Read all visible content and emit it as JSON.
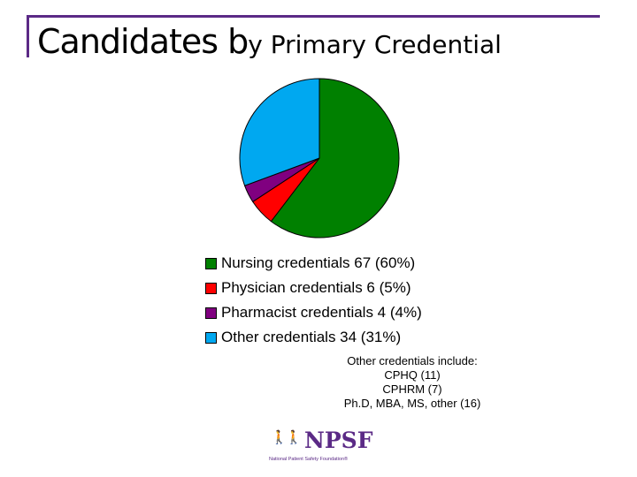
{
  "title": {
    "part1": "Candidates b",
    "part2": "y Primary Credential"
  },
  "colors": {
    "frame": "#5b2a86",
    "nursing": "#008000",
    "physician": "#ff0000",
    "pharmacist": "#800080",
    "other": "#00a8f0"
  },
  "chart_data": {
    "type": "pie",
    "title": "Candidates by Primary Credential",
    "slices": [
      {
        "label": "Nursing credentials  67 (60%)",
        "value": 67,
        "color": "#008000"
      },
      {
        "label": "Physician credentials  6  (5%)",
        "value": 6,
        "color": "#ff0000"
      },
      {
        "label": "Pharmacist credentials  4 (4%)",
        "value": 4,
        "color": "#800080"
      },
      {
        "label": "Other credentials 34 (31%)",
        "value": 34,
        "color": "#00a8f0"
      }
    ],
    "legend_position": "bottom"
  },
  "note": {
    "line1": "Other credentials include:",
    "line2": "CPHQ (11)",
    "line3": "CPHRM (7)",
    "line4": "Ph.D, MBA, MS, other (16)"
  },
  "logo": {
    "icon": "people-figures-icon",
    "text": "NPSF",
    "subtitle": "National Patient Safety Foundation®"
  }
}
